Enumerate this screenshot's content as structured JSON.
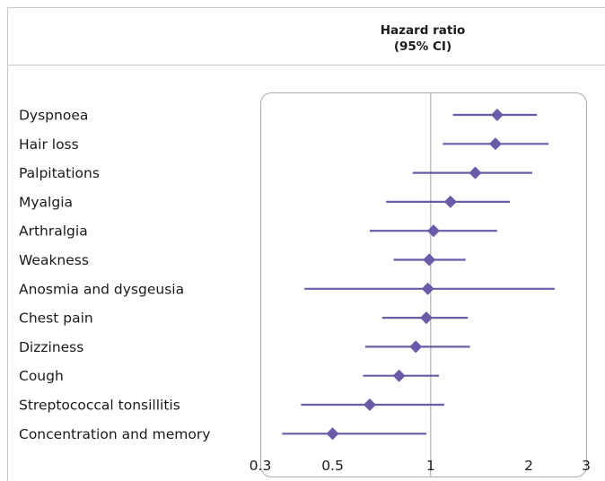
{
  "chart_data": {
    "type": "forest",
    "header": [
      "Hazard ratio",
      "(95% CI)"
    ],
    "scale": "log",
    "xlim": [
      0.3,
      3
    ],
    "x_ticks": [
      "0.3",
      "0.5",
      "1",
      "2",
      "3"
    ],
    "reference_line": 1,
    "colors": {
      "marker": "#6a5aa8",
      "frame": "#aaaaaa",
      "reference": "#b0b0b0"
    },
    "rows": [
      {
        "label": "Dyspnoea",
        "estimate": 1.6,
        "lower": 1.17,
        "upper": 2.12
      },
      {
        "label": "Hair loss",
        "estimate": 1.58,
        "lower": 1.09,
        "upper": 2.3
      },
      {
        "label": "Palpitations",
        "estimate": 1.37,
        "lower": 0.88,
        "upper": 2.05
      },
      {
        "label": "Myalgia",
        "estimate": 1.15,
        "lower": 0.73,
        "upper": 1.75
      },
      {
        "label": "Arthralgia",
        "estimate": 1.02,
        "lower": 0.65,
        "upper": 1.6
      },
      {
        "label": "Weakness",
        "estimate": 0.99,
        "lower": 0.77,
        "upper": 1.28
      },
      {
        "label": "Anosmia and dysgeusia",
        "estimate": 0.98,
        "lower": 0.41,
        "upper": 2.4
      },
      {
        "label": "Chest pain",
        "estimate": 0.97,
        "lower": 0.71,
        "upper": 1.3
      },
      {
        "label": "Dizziness",
        "estimate": 0.9,
        "lower": 0.63,
        "upper": 1.32
      },
      {
        "label": "Cough",
        "estimate": 0.8,
        "lower": 0.62,
        "upper": 1.06
      },
      {
        "label": "Streptococcal tonsillitis",
        "estimate": 0.65,
        "lower": 0.4,
        "upper": 1.1
      },
      {
        "label": "Concentration and memory",
        "estimate": 0.5,
        "lower": 0.35,
        "upper": 0.97
      }
    ]
  }
}
